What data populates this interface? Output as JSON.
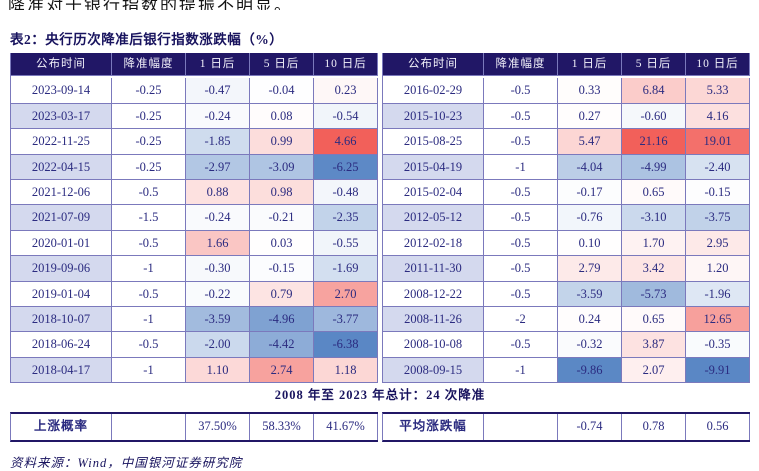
{
  "page": {
    "top_partial_text": "降准对于银行指数的提振不明显。",
    "title": "表2：央行历次降准后银行指数涨跌幅（%）",
    "source_note": "资料来源：Wind，中国银河证券研究院"
  },
  "table": {
    "column_headers": [
      "公布时间",
      "降准幅度",
      "1 日后",
      "5 日后",
      "10 日后"
    ],
    "total_note": "2008 年至 2023 年总计：24 次降准",
    "halves": [
      {
        "rows": [
          {
            "date": "2023-09-14",
            "cut": "-0.25",
            "after": [
              -0.47,
              -0.04,
              0.23
            ]
          },
          {
            "date": "2023-03-17",
            "cut": "-0.25",
            "after": [
              -0.24,
              0.08,
              -0.54
            ]
          },
          {
            "date": "2022-11-25",
            "cut": "-0.25",
            "after": [
              -1.85,
              0.99,
              4.66
            ]
          },
          {
            "date": "2022-04-15",
            "cut": "-0.25",
            "after": [
              -2.97,
              -3.09,
              -6.25
            ]
          },
          {
            "date": "2021-12-06",
            "cut": "-0.5",
            "after": [
              0.88,
              0.98,
              -0.48
            ]
          },
          {
            "date": "2021-07-09",
            "cut": "-1.5",
            "after": [
              -0.24,
              -0.21,
              -2.35
            ]
          },
          {
            "date": "2020-01-01",
            "cut": "-0.5",
            "after": [
              1.66,
              0.03,
              -0.55
            ]
          },
          {
            "date": "2019-09-06",
            "cut": "-1",
            "after": [
              -0.3,
              -0.15,
              -1.69
            ]
          },
          {
            "date": "2019-01-04",
            "cut": "-0.5",
            "after": [
              -0.22,
              0.79,
              2.7
            ]
          },
          {
            "date": "2018-10-07",
            "cut": "-1",
            "after": [
              -3.59,
              -4.96,
              -3.77
            ]
          },
          {
            "date": "2018-06-24",
            "cut": "-0.5",
            "after": [
              -2.0,
              -4.42,
              -6.38
            ]
          },
          {
            "date": "2018-04-17",
            "cut": "-1",
            "after": [
              1.1,
              2.74,
              1.18
            ]
          }
        ],
        "summary_label": "上涨概率",
        "summary_values": [
          "37.50%",
          "58.33%",
          "41.67%"
        ]
      },
      {
        "rows": [
          {
            "date": "2016-02-29",
            "cut": "-0.5",
            "after": [
              0.33,
              6.84,
              5.33
            ]
          },
          {
            "date": "2015-10-23",
            "cut": "-0.5",
            "after": [
              0.27,
              -0.6,
              4.16
            ]
          },
          {
            "date": "2015-08-25",
            "cut": "-0.5",
            "after": [
              5.47,
              21.16,
              19.01
            ]
          },
          {
            "date": "2015-04-19",
            "cut": "-1",
            "after": [
              -4.04,
              -4.99,
              -2.4
            ]
          },
          {
            "date": "2015-02-04",
            "cut": "-0.5",
            "after": [
              -0.17,
              0.65,
              -0.15
            ]
          },
          {
            "date": "2012-05-12",
            "cut": "-0.5",
            "after": [
              -0.76,
              -3.1,
              -3.75
            ]
          },
          {
            "date": "2012-02-18",
            "cut": "-0.5",
            "after": [
              0.1,
              1.7,
              2.95
            ]
          },
          {
            "date": "2011-11-30",
            "cut": "-0.5",
            "after": [
              2.79,
              3.42,
              1.2
            ]
          },
          {
            "date": "2008-12-22",
            "cut": "-0.5",
            "after": [
              -3.59,
              -5.73,
              -1.96
            ]
          },
          {
            "date": "2008-11-26",
            "cut": "-2",
            "after": [
              0.24,
              0.65,
              12.65
            ]
          },
          {
            "date": "2008-10-08",
            "cut": "-0.5",
            "after": [
              -0.32,
              3.87,
              -0.35
            ]
          },
          {
            "date": "2008-09-15",
            "cut": "-1",
            "after": [
              -9.86,
              2.07,
              -9.91
            ]
          }
        ],
        "summary_label": "平均涨跌幅",
        "summary_values": [
          "-0.74",
          "0.78",
          "0.56"
        ]
      }
    ]
  },
  "colors": {
    "header_bg": "#211766",
    "header_text": "#F2F1FA",
    "text_navy": "#2B2B80",
    "title_navy": "#18135E",
    "border": "#7B79BC",
    "thick_border": "#211766",
    "alt_row_bg": "#D4D9EE",
    "heat_red": "#F2605A",
    "heat_blue": "#5A87C5"
  }
}
